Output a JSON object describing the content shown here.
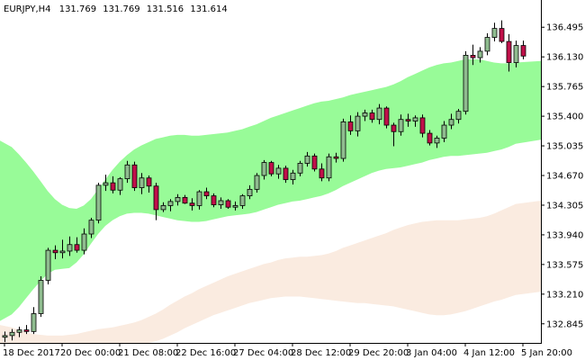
{
  "header": {
    "symbol_timeframe": "EURJPY,H4",
    "open": "131.769",
    "high": "131.769",
    "low": "131.516",
    "close": "131.614"
  },
  "chart_data": {
    "type": "candlestick",
    "symbol": "EURJPY",
    "timeframe": "H4",
    "y_ticks": [
      "136.495",
      "136.130",
      "135.765",
      "135.400",
      "135.035",
      "134.670",
      "134.305",
      "133.940",
      "133.575",
      "133.210",
      "132.845"
    ],
    "ylim": [
      132.61,
      136.83
    ],
    "x_ticks": [
      {
        "label": "18 Dec 2017",
        "index": 0
      },
      {
        "label": "20 Dec 00:00",
        "index": 8
      },
      {
        "label": "21 Dec 08:00",
        "index": 16
      },
      {
        "label": "22 Dec 16:00",
        "index": 24
      },
      {
        "label": "27 Dec 04:00",
        "index": 32
      },
      {
        "label": "28 Dec 12:00",
        "index": 40
      },
      {
        "label": "29 Dec 20:00",
        "index": 48
      },
      {
        "label": "3 Jan 04:00",
        "index": 56
      },
      {
        "label": "4 Jan 12:00",
        "index": 64
      },
      {
        "label": "5 Jan 20:00",
        "index": 72
      }
    ],
    "candles": [
      [
        132.68,
        132.75,
        132.62,
        132.7
      ],
      [
        132.7,
        132.78,
        132.64,
        132.74
      ],
      [
        132.74,
        132.81,
        132.68,
        132.77
      ],
      [
        132.77,
        132.83,
        132.72,
        132.75
      ],
      [
        132.75,
        133.05,
        132.72,
        132.97
      ],
      [
        132.97,
        133.43,
        132.93,
        133.38
      ],
      [
        133.38,
        133.78,
        133.33,
        133.75
      ],
      [
        133.75,
        133.81,
        133.64,
        133.72
      ],
      [
        133.72,
        133.88,
        133.65,
        133.74
      ],
      [
        133.74,
        133.92,
        133.68,
        133.82
      ],
      [
        133.82,
        133.91,
        133.72,
        133.75
      ],
      [
        133.75,
        134.02,
        133.7,
        133.95
      ],
      [
        133.95,
        134.15,
        133.9,
        134.12
      ],
      [
        134.12,
        134.58,
        134.08,
        134.55
      ],
      [
        134.55,
        134.68,
        134.48,
        134.58
      ],
      [
        134.58,
        134.66,
        134.45,
        134.49
      ],
      [
        134.49,
        134.65,
        134.43,
        134.63
      ],
      [
        134.63,
        134.85,
        134.58,
        134.8
      ],
      [
        134.8,
        134.84,
        134.48,
        134.52
      ],
      [
        134.52,
        134.7,
        134.44,
        134.64
      ],
      [
        134.64,
        134.67,
        134.46,
        134.54
      ],
      [
        134.54,
        134.58,
        134.12,
        134.25
      ],
      [
        134.25,
        134.34,
        134.22,
        134.3
      ],
      [
        134.3,
        134.38,
        134.23,
        134.35
      ],
      [
        134.35,
        134.44,
        134.3,
        134.4
      ],
      [
        134.4,
        134.43,
        134.32,
        134.33
      ],
      [
        134.33,
        134.39,
        134.24,
        134.3
      ],
      [
        134.3,
        134.49,
        134.25,
        134.47
      ],
      [
        134.47,
        134.52,
        134.38,
        134.42
      ],
      [
        134.42,
        134.45,
        134.28,
        134.31
      ],
      [
        134.31,
        134.4,
        134.26,
        134.36
      ],
      [
        134.36,
        134.38,
        134.26,
        134.28
      ],
      [
        134.28,
        134.35,
        134.24,
        134.3
      ],
      [
        134.3,
        134.44,
        134.26,
        134.42
      ],
      [
        134.42,
        134.55,
        134.38,
        134.5
      ],
      [
        134.5,
        134.7,
        134.46,
        134.67
      ],
      [
        134.67,
        134.86,
        134.62,
        134.83
      ],
      [
        134.83,
        134.85,
        134.66,
        134.69
      ],
      [
        134.69,
        134.8,
        134.63,
        134.76
      ],
      [
        134.76,
        134.79,
        134.58,
        134.62
      ],
      [
        134.62,
        134.74,
        134.56,
        134.7
      ],
      [
        134.7,
        134.85,
        134.66,
        134.82
      ],
      [
        134.82,
        134.96,
        134.78,
        134.91
      ],
      [
        134.91,
        134.94,
        134.72,
        134.75
      ],
      [
        134.75,
        134.82,
        134.6,
        134.64
      ],
      [
        134.64,
        134.94,
        134.6,
        134.9
      ],
      [
        134.9,
        134.95,
        134.83,
        134.88
      ],
      [
        134.88,
        135.37,
        134.84,
        135.33
      ],
      [
        135.33,
        135.41,
        135.17,
        135.22
      ],
      [
        135.22,
        135.45,
        135.15,
        135.4
      ],
      [
        135.4,
        135.48,
        135.34,
        135.44
      ],
      [
        135.44,
        135.48,
        135.32,
        135.36
      ],
      [
        135.36,
        135.55,
        135.3,
        135.5
      ],
      [
        135.5,
        135.52,
        135.25,
        135.29
      ],
      [
        135.29,
        135.32,
        135.03,
        135.21
      ],
      [
        135.21,
        135.42,
        135.16,
        135.36
      ],
      [
        135.36,
        135.43,
        135.27,
        135.34
      ],
      [
        135.34,
        135.41,
        135.27,
        135.38
      ],
      [
        135.38,
        135.42,
        135.14,
        135.19
      ],
      [
        135.19,
        135.23,
        135.04,
        135.07
      ],
      [
        135.07,
        135.16,
        135.01,
        135.13
      ],
      [
        135.13,
        135.34,
        135.08,
        135.29
      ],
      [
        135.29,
        135.43,
        135.24,
        135.36
      ],
      [
        135.36,
        135.49,
        135.31,
        135.46
      ],
      [
        135.46,
        136.2,
        135.42,
        136.15
      ],
      [
        136.15,
        136.28,
        136.03,
        136.12
      ],
      [
        136.12,
        136.25,
        136.06,
        136.2
      ],
      [
        136.2,
        136.42,
        136.15,
        136.37
      ],
      [
        136.37,
        136.55,
        136.32,
        136.48
      ],
      [
        136.48,
        136.58,
        136.3,
        136.32
      ],
      [
        136.32,
        136.41,
        135.95,
        136.06
      ],
      [
        136.06,
        136.33,
        136.0,
        136.27
      ],
      [
        136.27,
        136.33,
        136.1,
        136.14
      ]
    ],
    "colors": {
      "bull_body": "#8fbc8f",
      "bear_body": "#c0104a",
      "outline": "#000000",
      "upper_band_fill": "#98fb98",
      "lower_band_fill": "#faebe0",
      "grid": "#dcdcdc"
    },
    "upper_band": {
      "top": [
        135.1,
        135.02,
        134.93,
        134.83,
        134.72,
        134.6,
        134.48,
        134.38,
        134.31,
        134.27,
        134.26,
        134.3,
        134.38,
        134.5,
        134.62,
        134.74,
        134.84,
        134.92,
        134.99,
        135.04,
        135.08,
        135.12,
        135.14,
        135.16,
        135.17,
        135.17,
        135.16,
        135.16,
        135.17,
        135.18,
        135.19,
        135.2,
        135.22,
        135.24,
        135.27,
        135.3,
        135.34,
        135.38,
        135.41,
        135.44,
        135.47,
        135.5,
        135.53,
        135.56,
        135.58,
        135.59,
        135.61,
        135.63,
        135.66,
        135.68,
        135.7,
        135.72,
        135.74,
        135.76,
        135.79,
        135.83,
        135.88,
        135.92,
        135.96,
        136.0,
        136.03,
        136.05,
        136.06,
        136.08,
        136.1,
        136.1,
        136.1,
        136.08,
        136.06,
        136.05,
        136.05,
        136.06,
        136.08
      ],
      "bottom": [
        132.88,
        132.96,
        133.05,
        133.16,
        133.27,
        133.37,
        133.46,
        133.51,
        133.52,
        133.53,
        133.6,
        133.7,
        133.83,
        133.95,
        134.05,
        134.12,
        134.17,
        134.2,
        134.21,
        134.21,
        134.2,
        134.18,
        134.16,
        134.14,
        134.12,
        134.11,
        134.1,
        134.1,
        134.11,
        134.13,
        134.15,
        134.17,
        134.18,
        134.19,
        134.2,
        134.22,
        134.25,
        134.28,
        134.31,
        134.33,
        134.35,
        134.36,
        134.38,
        134.4,
        134.42,
        134.45,
        134.49,
        134.54,
        134.58,
        134.62,
        134.66,
        134.7,
        134.73,
        134.75,
        134.76,
        134.77,
        134.79,
        134.81,
        134.83,
        134.86,
        134.88,
        134.9,
        134.91,
        134.91,
        134.92,
        134.93,
        134.94,
        134.95,
        134.97,
        134.99,
        135.02,
        135.06,
        135.11
      ]
    },
    "lower_band": {
      "top": [
        132.83,
        132.8,
        132.77,
        132.74,
        132.72,
        132.71,
        132.7,
        132.7,
        132.7,
        132.71,
        132.72,
        132.74,
        132.76,
        132.78,
        132.79,
        132.8,
        132.82,
        132.84,
        132.86,
        132.89,
        132.93,
        132.97,
        133.02,
        133.08,
        133.13,
        133.18,
        133.22,
        133.27,
        133.31,
        133.35,
        133.39,
        133.43,
        133.46,
        133.49,
        133.52,
        133.55,
        133.58,
        133.6,
        133.63,
        133.65,
        133.66,
        133.67,
        133.67,
        133.68,
        133.69,
        133.71,
        133.74,
        133.78,
        133.81,
        133.84,
        133.87,
        133.9,
        133.93,
        133.96,
        134.0,
        134.03,
        134.06,
        134.08,
        134.1,
        134.11,
        134.12,
        134.12,
        134.12,
        134.12,
        134.13,
        134.14,
        134.15,
        134.17,
        134.2,
        134.24,
        134.28,
        134.32,
        134.36
      ],
      "bottom": [
        132.61,
        132.61,
        132.61,
        132.61,
        132.61,
        132.61,
        132.61,
        132.61,
        132.61,
        132.61,
        132.61,
        132.61,
        132.61,
        132.61,
        132.61,
        132.61,
        132.61,
        132.61,
        132.61,
        132.61,
        132.61,
        132.63,
        132.66,
        132.7,
        132.74,
        132.79,
        132.83,
        132.87,
        132.91,
        132.95,
        132.98,
        133.01,
        133.04,
        133.07,
        133.1,
        133.12,
        133.14,
        133.16,
        133.17,
        133.18,
        133.18,
        133.18,
        133.17,
        133.16,
        133.15,
        133.14,
        133.13,
        133.12,
        133.11,
        133.1,
        133.1,
        133.09,
        133.08,
        133.07,
        133.06,
        133.04,
        133.02,
        133.0,
        132.98,
        132.96,
        132.95,
        132.95,
        132.96,
        132.98,
        133.0,
        133.03,
        133.06,
        133.09,
        133.12,
        133.14,
        133.17,
        133.2,
        133.24
      ]
    }
  }
}
